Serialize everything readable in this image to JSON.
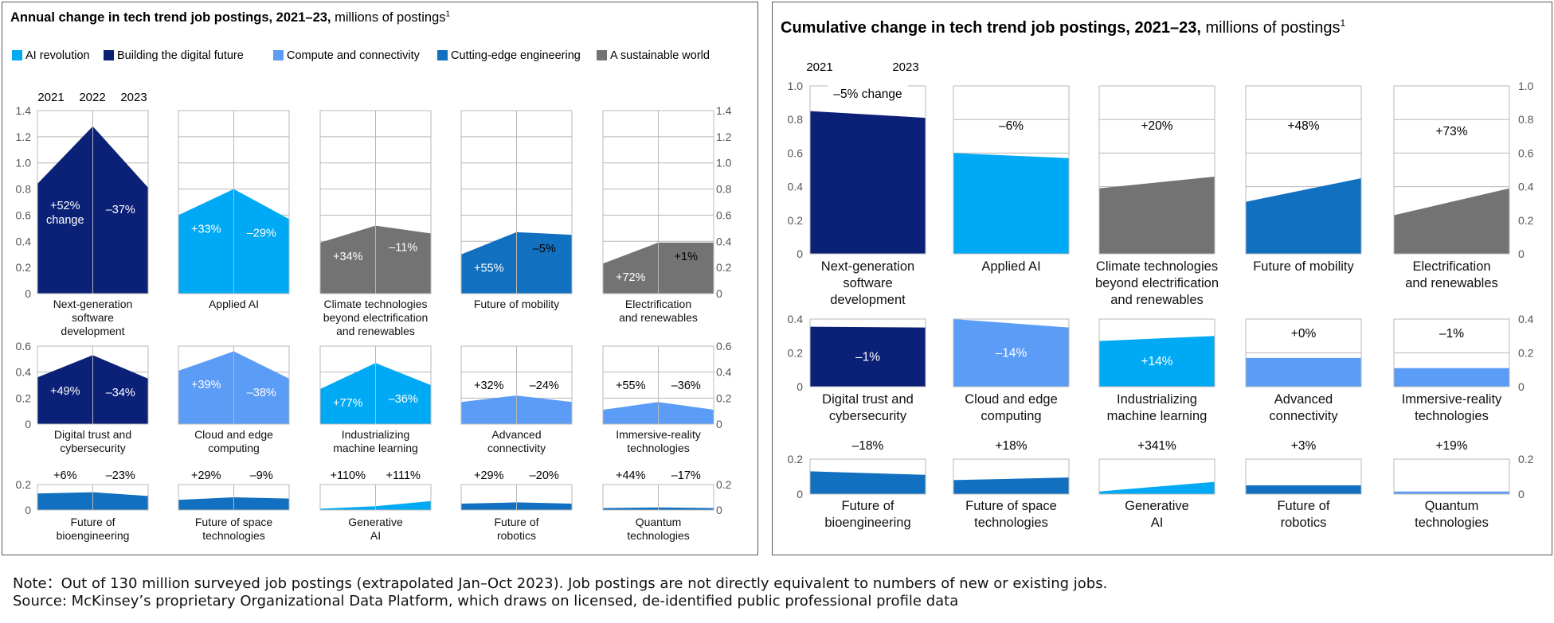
{
  "colors": {
    "ai_revolution": "#00a9f4",
    "building_digital_future": "#0b2077",
    "compute_connectivity": "#5b9cf6",
    "cutting_edge_engineering": "#1170c0",
    "sustainable_world": "#737373"
  },
  "legend": [
    {
      "label": "AI revolution",
      "color": "#00a9f4"
    },
    {
      "label": "Building the digital future",
      "color": "#0b2077"
    },
    {
      "label": "Compute and connectivity",
      "color": "#5b9cf6"
    },
    {
      "label": "Cutting-edge engineering",
      "color": "#1170c0"
    },
    {
      "label": "A sustainable world",
      "color": "#737373"
    }
  ],
  "footer": {
    "note": "Note：Out of 130 million surveyed job postings (extrapolated Jan–Oct 2023). Job postings are not directly equivalent to numbers of new or existing jobs.",
    "source": "Source: McKinsey’s proprietary Organizational Data Platform, which draws on licensed, de-identified public professional profile data"
  },
  "chart_data": [
    {
      "type": "area",
      "title": "Annual change in tech trend job postings, 2021–23,",
      "subtitle": "millions of postings",
      "superscript": "1",
      "x": [
        "2021",
        "2022",
        "2023"
      ],
      "change_word": "change",
      "rows": [
        {
          "ylim": [
            0,
            1.4
          ],
          "ticks": [
            0,
            0.2,
            0.4,
            0.6,
            0.8,
            1.0,
            1.2,
            1.4
          ],
          "tick_labels": [
            "0",
            "0.2",
            "0.4",
            "0.6",
            "0.8",
            "1.0",
            "1.2",
            "1.4"
          ],
          "panels": [
            {
              "name": "Next-generation software development",
              "label_lines": [
                "Next-generation",
                "software",
                "development"
              ],
              "color": "#0b2077",
              "values": [
                0.84,
                1.28,
                0.81
              ],
              "changes": [
                "+52%",
                "–37%"
              ]
            },
            {
              "name": "Applied AI",
              "label_lines": [
                "Applied AI"
              ],
              "color": "#00a9f4",
              "values": [
                0.6,
                0.8,
                0.57
              ],
              "changes": [
                "+33%",
                "–29%"
              ]
            },
            {
              "name": "Climate technologies beyond electrification and renewables",
              "label_lines": [
                "Climate technologies",
                "beyond electrification",
                "and renewables"
              ],
              "color": "#737373",
              "values": [
                0.39,
                0.52,
                0.46
              ],
              "changes": [
                "+34%",
                "–11%"
              ]
            },
            {
              "name": "Future of mobility",
              "label_lines": [
                "Future of mobility"
              ],
              "color": "#1170c0",
              "values": [
                0.3,
                0.47,
                0.45
              ],
              "changes": [
                "+55%",
                "–5%"
              ]
            },
            {
              "name": "Electrification and renewables",
              "label_lines": [
                "Electrification",
                "and renewables"
              ],
              "color": "#737373",
              "values": [
                0.23,
                0.39,
                0.39
              ],
              "changes": [
                "+72%",
                "+1%"
              ]
            }
          ]
        },
        {
          "ylim": [
            0,
            0.6
          ],
          "ticks": [
            0,
            0.2,
            0.4,
            0.6
          ],
          "tick_labels": [
            "0",
            "0.2",
            "0.4",
            "0.6"
          ],
          "panels": [
            {
              "name": "Digital trust and cybersecurity",
              "label_lines": [
                "Digital trust and",
                "cybersecurity"
              ],
              "color": "#0b2077",
              "values": [
                0.36,
                0.53,
                0.35
              ],
              "changes": [
                "+49%",
                "–34%"
              ]
            },
            {
              "name": "Cloud and edge computing",
              "label_lines": [
                "Cloud and edge",
                "computing"
              ],
              "color": "#5b9cf6",
              "values": [
                0.41,
                0.56,
                0.35
              ],
              "changes": [
                "+39%",
                "–38%"
              ]
            },
            {
              "name": "Industrializing machine learning",
              "label_lines": [
                "Industrializing",
                "machine learning"
              ],
              "color": "#00a9f4",
              "values": [
                0.27,
                0.47,
                0.3
              ],
              "changes": [
                "+77%",
                "–36%"
              ]
            },
            {
              "name": "Advanced connectivity",
              "label_lines": [
                "Advanced",
                "connectivity"
              ],
              "color": "#5b9cf6",
              "values": [
                0.17,
                0.22,
                0.17
              ],
              "changes": [
                "+32%",
                "–24%"
              ]
            },
            {
              "name": "Immersive-reality technologies",
              "label_lines": [
                "Immersive-reality",
                "technologies"
              ],
              "color": "#5b9cf6",
              "values": [
                0.11,
                0.17,
                0.11
              ],
              "changes": [
                "+55%",
                "–36%"
              ]
            }
          ]
        },
        {
          "ylim": [
            0,
            0.2
          ],
          "ticks": [
            0,
            0.2
          ],
          "tick_labels": [
            "0",
            "0.2"
          ],
          "panels": [
            {
              "name": "Future of bioengineering",
              "label_lines": [
                "Future of",
                "bioengineering"
              ],
              "color": "#1170c0",
              "values": [
                0.13,
                0.14,
                0.11
              ],
              "changes": [
                "+6%",
                "–23%"
              ]
            },
            {
              "name": "Future of space technologies",
              "label_lines": [
                "Future of space",
                "technologies"
              ],
              "color": "#1170c0",
              "values": [
                0.08,
                0.1,
                0.09
              ],
              "changes": [
                "+29%",
                "–9%"
              ]
            },
            {
              "name": "Generative AI",
              "label_lines": [
                "Generative",
                "AI"
              ],
              "color": "#00a9f4",
              "values": [
                0.01,
                0.03,
                0.07
              ],
              "changes": [
                "+110%",
                "+111%"
              ]
            },
            {
              "name": "Future of robotics",
              "label_lines": [
                "Future of",
                "robotics"
              ],
              "color": "#1170c0",
              "values": [
                0.05,
                0.06,
                0.05
              ],
              "changes": [
                "+29%",
                "–20%"
              ]
            },
            {
              "name": "Quantum technologies",
              "label_lines": [
                "Quantum",
                "technologies"
              ],
              "color": "#1170c0",
              "values": [
                0.015,
                0.02,
                0.015
              ],
              "changes": [
                "+44%",
                "–17%"
              ]
            }
          ]
        }
      ]
    },
    {
      "type": "area",
      "title": "Cumulative change in tech trend job postings, 2021–23,",
      "subtitle": "millions of postings",
      "superscript": "1",
      "x": [
        "2021",
        "2023"
      ],
      "change_word": "change",
      "rows": [
        {
          "ylim": [
            0,
            1.0
          ],
          "ticks": [
            0,
            0.2,
            0.4,
            0.6,
            0.8,
            1.0
          ],
          "tick_labels": [
            "0",
            "0.2",
            "0.4",
            "0.6",
            "0.8",
            "1.0"
          ],
          "panels": [
            {
              "name": "Next-generation software development",
              "label_lines": [
                "Next-generation",
                "software",
                "development"
              ],
              "color": "#0b2077",
              "values": [
                0.85,
                0.81
              ],
              "change": "–5%"
            },
            {
              "name": "Applied AI",
              "label_lines": [
                "Applied AI"
              ],
              "color": "#00a9f4",
              "values": [
                0.6,
                0.57
              ],
              "change": "–6%"
            },
            {
              "name": "Climate technologies beyond electrification and renewables",
              "label_lines": [
                "Climate technologies",
                "beyond electrification",
                "and renewables"
              ],
              "color": "#737373",
              "values": [
                0.39,
                0.46
              ],
              "change": "+20%"
            },
            {
              "name": "Future of mobility",
              "label_lines": [
                "Future of mobility"
              ],
              "color": "#1170c0",
              "values": [
                0.31,
                0.45
              ],
              "change": "+48%"
            },
            {
              "name": "Electrification and renewables",
              "label_lines": [
                "Electrification",
                "and renewables"
              ],
              "color": "#737373",
              "values": [
                0.23,
                0.39
              ],
              "change": "+73%"
            }
          ]
        },
        {
          "ylim": [
            0,
            0.4
          ],
          "ticks": [
            0,
            0.2,
            0.4
          ],
          "tick_labels": [
            "0",
            "0.2",
            "0.4"
          ],
          "panels": [
            {
              "name": "Digital trust and cybersecurity",
              "label_lines": [
                "Digital trust and",
                "cybersecurity"
              ],
              "color": "#0b2077",
              "values": [
                0.355,
                0.35
              ],
              "change": "–1%"
            },
            {
              "name": "Cloud and edge computing",
              "label_lines": [
                "Cloud and edge",
                "computing"
              ],
              "color": "#5b9cf6",
              "values": [
                0.4,
                0.35
              ],
              "change": "–14%"
            },
            {
              "name": "Industrializing machine learning",
              "label_lines": [
                "Industrializing",
                "machine learning"
              ],
              "color": "#00a9f4",
              "values": [
                0.27,
                0.3
              ],
              "change": "+14%"
            },
            {
              "name": "Advanced connectivity",
              "label_lines": [
                "Advanced",
                "connectivity"
              ],
              "color": "#5b9cf6",
              "values": [
                0.17,
                0.17
              ],
              "change": "+0%"
            },
            {
              "name": "Immersive-reality technologies",
              "label_lines": [
                "Immersive-reality",
                "technologies"
              ],
              "color": "#5b9cf6",
              "values": [
                0.11,
                0.11
              ],
              "change": "–1%"
            }
          ]
        },
        {
          "ylim": [
            0,
            0.2
          ],
          "ticks": [
            0,
            0.2
          ],
          "tick_labels": [
            "0",
            "0.2"
          ],
          "panels": [
            {
              "name": "Future of bioengineering",
              "label_lines": [
                "Future of",
                "bioengineering"
              ],
              "color": "#1170c0",
              "values": [
                0.13,
                0.11
              ],
              "change": "–18%"
            },
            {
              "name": "Future of space technologies",
              "label_lines": [
                "Future of space",
                "technologies"
              ],
              "color": "#1170c0",
              "values": [
                0.08,
                0.095
              ],
              "change": "+18%"
            },
            {
              "name": "Generative AI",
              "label_lines": [
                "Generative",
                "AI"
              ],
              "color": "#00a9f4",
              "values": [
                0.015,
                0.07
              ],
              "change": "+341%"
            },
            {
              "name": "Future of robotics",
              "label_lines": [
                "Future of",
                "robotics"
              ],
              "color": "#1170c0",
              "values": [
                0.05,
                0.05
              ],
              "change": "+3%"
            },
            {
              "name": "Quantum technologies",
              "label_lines": [
                "Quantum",
                "technologies"
              ],
              "color": "#5b9cf6",
              "values": [
                0.015,
                0.015
              ],
              "change": "+19%"
            }
          ]
        }
      ]
    }
  ]
}
